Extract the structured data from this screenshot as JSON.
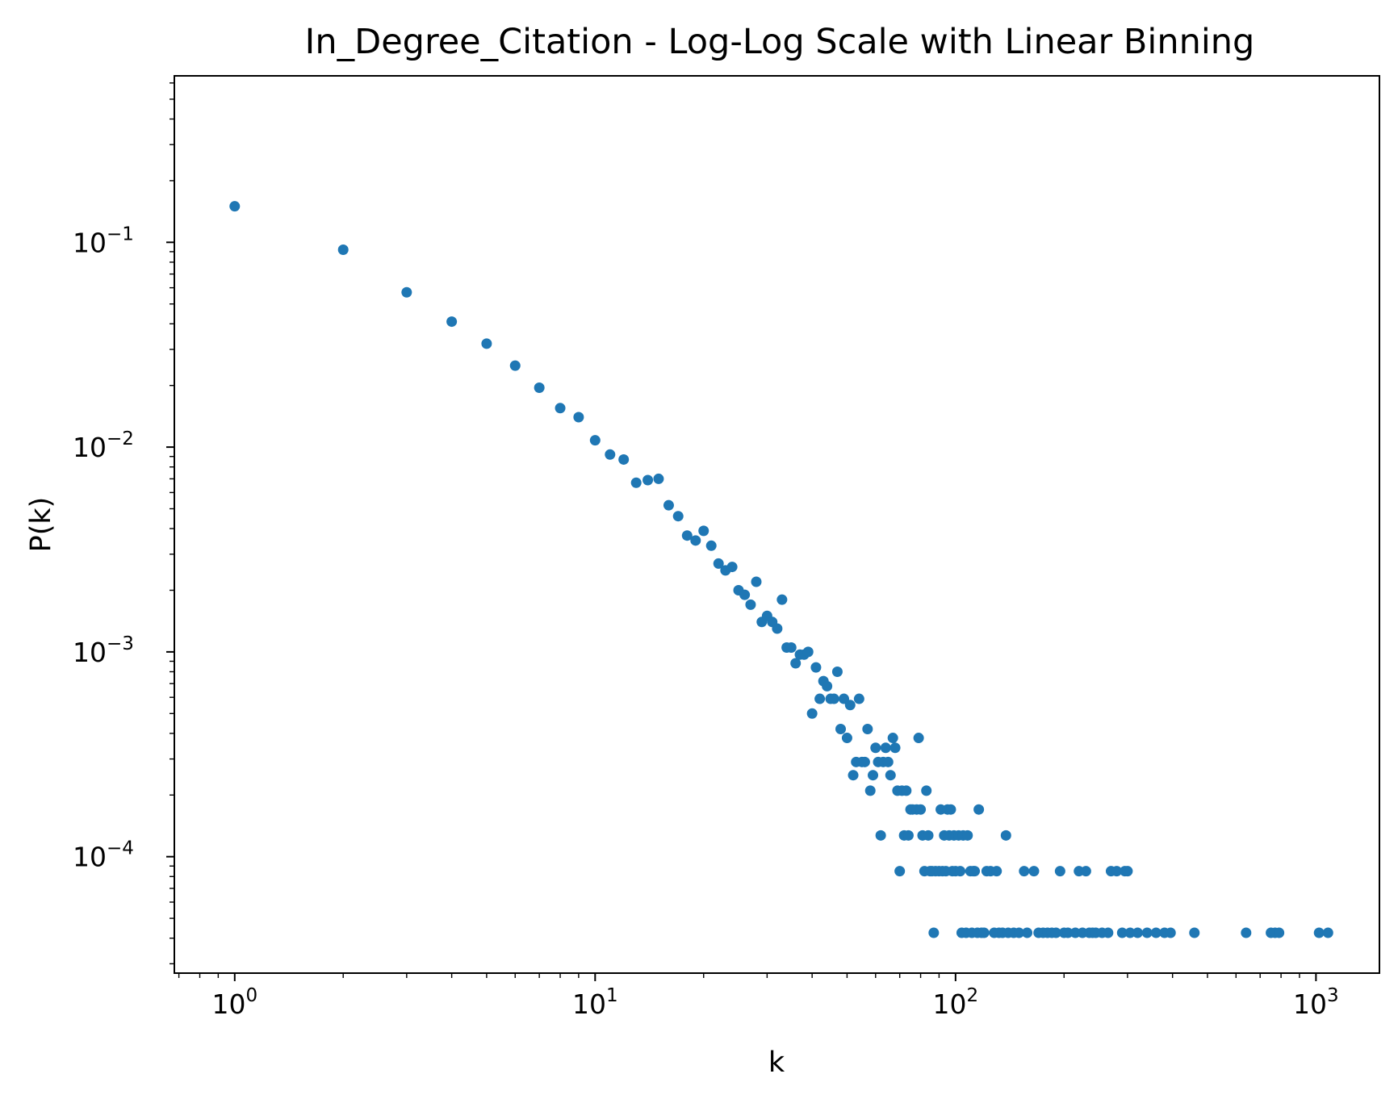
{
  "chart_data": {
    "type": "scatter",
    "title": "In_Degree_Citation - Log-Log Scale with Linear Binning",
    "xlabel": "k",
    "ylabel": "P(k)",
    "xscale": "log",
    "yscale": "log",
    "xlim": [
      0.68,
      1500
    ],
    "ylim": [
      2.7e-05,
      0.65
    ],
    "grid": false,
    "marker_color": "#1f77b4",
    "x_ticks": [
      {
        "value": 1,
        "base": "10",
        "exp": "0"
      },
      {
        "value": 10,
        "base": "10",
        "exp": "1"
      },
      {
        "value": 100,
        "base": "10",
        "exp": "2"
      },
      {
        "value": 1000,
        "base": "10",
        "exp": "3"
      }
    ],
    "y_ticks": [
      {
        "value": 0.1,
        "base": "10",
        "exp": "−1"
      },
      {
        "value": 0.01,
        "base": "10",
        "exp": "−2"
      },
      {
        "value": 0.001,
        "base": "10",
        "exp": "−3"
      },
      {
        "value": 0.0001,
        "base": "10",
        "exp": "−4"
      }
    ],
    "series": [
      {
        "points": [
          [
            1,
            0.15
          ],
          [
            2,
            0.092
          ],
          [
            3,
            0.057
          ],
          [
            4,
            0.041
          ],
          [
            5,
            0.032
          ],
          [
            6,
            0.025
          ],
          [
            7,
            0.0195
          ],
          [
            8,
            0.0155
          ],
          [
            9,
            0.014
          ],
          [
            10,
            0.0108
          ],
          [
            11,
            0.0092
          ],
          [
            12,
            0.0087
          ],
          [
            13,
            0.0067
          ],
          [
            14,
            0.0069
          ],
          [
            15,
            0.007
          ],
          [
            16,
            0.0052
          ],
          [
            17,
            0.0046
          ],
          [
            18,
            0.0037
          ],
          [
            19,
            0.0035
          ],
          [
            20,
            0.0039
          ],
          [
            21,
            0.0033
          ],
          [
            22,
            0.0027
          ],
          [
            23,
            0.0025
          ],
          [
            24,
            0.0026
          ],
          [
            25,
            0.002
          ],
          [
            26,
            0.0019
          ],
          [
            27,
            0.0017
          ],
          [
            28,
            0.0022
          ],
          [
            29,
            0.0014
          ],
          [
            30,
            0.0015
          ],
          [
            31,
            0.0014
          ],
          [
            32,
            0.0013
          ],
          [
            33,
            0.0018
          ],
          [
            34,
            0.00105
          ],
          [
            35,
            0.00105
          ],
          [
            36,
            0.00088
          ],
          [
            37,
            0.00097
          ],
          [
            38,
            0.00097
          ],
          [
            39,
            0.001
          ],
          [
            40,
            0.0005
          ],
          [
            41,
            0.00084
          ],
          [
            42,
            0.00059
          ],
          [
            43,
            0.00072
          ],
          [
            44,
            0.00068
          ],
          [
            45,
            0.00059
          ],
          [
            46,
            0.00059
          ],
          [
            47,
            0.0008
          ],
          [
            48,
            0.00042
          ],
          [
            49,
            0.00059
          ],
          [
            50,
            0.00038
          ],
          [
            51,
            0.00055
          ],
          [
            52,
            0.00025
          ],
          [
            53,
            0.00029
          ],
          [
            54,
            0.00059
          ],
          [
            55,
            0.00029
          ],
          [
            56,
            0.00029
          ],
          [
            57,
            0.00042
          ],
          [
            58,
            0.00021
          ],
          [
            59,
            0.00025
          ],
          [
            60,
            0.00034
          ],
          [
            61,
            0.00029
          ],
          [
            62,
            0.000127
          ],
          [
            63,
            0.00029
          ],
          [
            64,
            0.00034
          ],
          [
            65,
            0.00029
          ],
          [
            66,
            0.00025
          ],
          [
            67,
            0.00038
          ],
          [
            68,
            0.00034
          ],
          [
            69,
            0.00021
          ],
          [
            70,
            8.5e-05
          ],
          [
            71,
            0.00021
          ],
          [
            72,
            0.000127
          ],
          [
            73,
            0.00021
          ],
          [
            74,
            0.000127
          ],
          [
            75,
            0.00017
          ],
          [
            76,
            0.00017
          ],
          [
            78,
            0.00017
          ],
          [
            79,
            0.00038
          ],
          [
            80,
            0.00017
          ],
          [
            81,
            0.000127
          ],
          [
            82,
            8.5e-05
          ],
          [
            83,
            0.00021
          ],
          [
            84,
            0.000127
          ],
          [
            85,
            8.5e-05
          ],
          [
            86,
            8.5e-05
          ],
          [
            87,
            4.25e-05
          ],
          [
            88,
            8.5e-05
          ],
          [
            90,
            8.5e-05
          ],
          [
            91,
            0.00017
          ],
          [
            92,
            8.5e-05
          ],
          [
            93,
            0.000127
          ],
          [
            94,
            8.5e-05
          ],
          [
            95,
            0.00017
          ],
          [
            96,
            0.000127
          ],
          [
            97,
            0.00017
          ],
          [
            98,
            8.5e-05
          ],
          [
            99,
            0.000127
          ],
          [
            100,
            8.5e-05
          ],
          [
            102,
            0.000127
          ],
          [
            103,
            8.5e-05
          ],
          [
            104,
            4.25e-05
          ],
          [
            105,
            0.000127
          ],
          [
            107,
            4.25e-05
          ],
          [
            108,
            0.000127
          ],
          [
            110,
            8.5e-05
          ],
          [
            111,
            4.25e-05
          ],
          [
            112,
            8.5e-05
          ],
          [
            113,
            8.5e-05
          ],
          [
            115,
            4.25e-05
          ],
          [
            116,
            0.00017
          ],
          [
            118,
            4.25e-05
          ],
          [
            120,
            4.25e-05
          ],
          [
            122,
            8.5e-05
          ],
          [
            125,
            8.5e-05
          ],
          [
            128,
            4.25e-05
          ],
          [
            130,
            8.5e-05
          ],
          [
            132,
            4.25e-05
          ],
          [
            135,
            4.25e-05
          ],
          [
            138,
            0.000127
          ],
          [
            140,
            4.25e-05
          ],
          [
            145,
            4.25e-05
          ],
          [
            150,
            4.25e-05
          ],
          [
            155,
            8.5e-05
          ],
          [
            158,
            4.25e-05
          ],
          [
            165,
            8.5e-05
          ],
          [
            170,
            4.25e-05
          ],
          [
            175,
            4.25e-05
          ],
          [
            180,
            4.25e-05
          ],
          [
            185,
            4.25e-05
          ],
          [
            190,
            4.25e-05
          ],
          [
            195,
            8.5e-05
          ],
          [
            200,
            4.25e-05
          ],
          [
            205,
            4.25e-05
          ],
          [
            215,
            4.25e-05
          ],
          [
            220,
            8.5e-05
          ],
          [
            225,
            4.25e-05
          ],
          [
            230,
            8.5e-05
          ],
          [
            235,
            4.25e-05
          ],
          [
            240,
            4.25e-05
          ],
          [
            245,
            4.25e-05
          ],
          [
            255,
            4.25e-05
          ],
          [
            265,
            4.25e-05
          ],
          [
            270,
            8.5e-05
          ],
          [
            280,
            8.5e-05
          ],
          [
            290,
            4.25e-05
          ],
          [
            295,
            8.5e-05
          ],
          [
            300,
            8.5e-05
          ],
          [
            305,
            4.25e-05
          ],
          [
            320,
            4.25e-05
          ],
          [
            340,
            4.25e-05
          ],
          [
            360,
            4.25e-05
          ],
          [
            380,
            4.25e-05
          ],
          [
            395,
            4.25e-05
          ],
          [
            460,
            4.25e-05
          ],
          [
            640,
            4.25e-05
          ],
          [
            750,
            4.25e-05
          ],
          [
            770,
            4.25e-05
          ],
          [
            790,
            4.25e-05
          ],
          [
            1020,
            4.25e-05
          ],
          [
            1080,
            4.25e-05
          ]
        ]
      }
    ]
  }
}
